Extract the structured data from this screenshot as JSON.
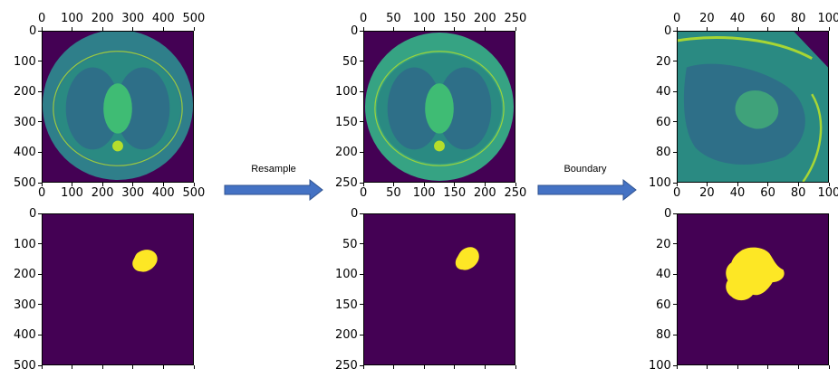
{
  "panels": [
    {
      "id": "orig-ct",
      "kind": "ct",
      "variant": "full",
      "x_ticks": [
        "0",
        "100",
        "200",
        "300",
        "400",
        "500"
      ],
      "y_ticks": [
        "0",
        "100",
        "200",
        "300",
        "400",
        "500"
      ],
      "x_labels_visible": true
    },
    {
      "id": "orig-mask",
      "kind": "mask",
      "variant": "full-mask",
      "x_ticks": [
        "",
        "",
        "",
        "",
        "",
        ""
      ],
      "y_ticks": [
        "0",
        "100",
        "200",
        "300",
        "400",
        "500"
      ],
      "x_labels_visible": false
    },
    {
      "id": "resampled-ct",
      "kind": "ct",
      "variant": "resampled",
      "x_ticks": [
        "0",
        "50",
        "100",
        "150",
        "200",
        "250"
      ],
      "y_ticks": [
        "0",
        "50",
        "100",
        "150",
        "200",
        "250"
      ],
      "x_labels_visible": true
    },
    {
      "id": "resampled-mask",
      "kind": "mask",
      "variant": "resampled-mask",
      "x_ticks": [
        "",
        "",
        "",
        "",
        "",
        ""
      ],
      "y_ticks": [
        "0",
        "50",
        "100",
        "150",
        "200",
        "250"
      ],
      "x_labels_visible": false
    },
    {
      "id": "boundary-ct",
      "kind": "ct",
      "variant": "crop",
      "x_ticks": [
        "0",
        "20",
        "40",
        "60",
        "80",
        "100"
      ],
      "y_ticks": [
        "0",
        "20",
        "40",
        "60",
        "80",
        "100"
      ],
      "x_labels_visible": true
    },
    {
      "id": "boundary-mask",
      "kind": "mask",
      "variant": "crop-mask",
      "x_ticks": [
        "",
        "",
        "",
        "",
        "",
        ""
      ],
      "y_ticks": [
        "0",
        "20",
        "40",
        "60",
        "80",
        "100"
      ],
      "x_labels_visible": false
    }
  ],
  "arrows": [
    {
      "id": "resample",
      "label": "Resample"
    },
    {
      "id": "boundary",
      "label": "Boundary"
    }
  ],
  "colors": {
    "viridis_dark": "#440154",
    "ct_body": "#2a8a82",
    "ct_lung": "#2e6f88",
    "ct_light": "#3fbc74",
    "ct_bright": "#b5de2b",
    "mask_fg": "#fde725",
    "arrow_fill": "#4472c4",
    "arrow_stroke": "#2f528f"
  }
}
